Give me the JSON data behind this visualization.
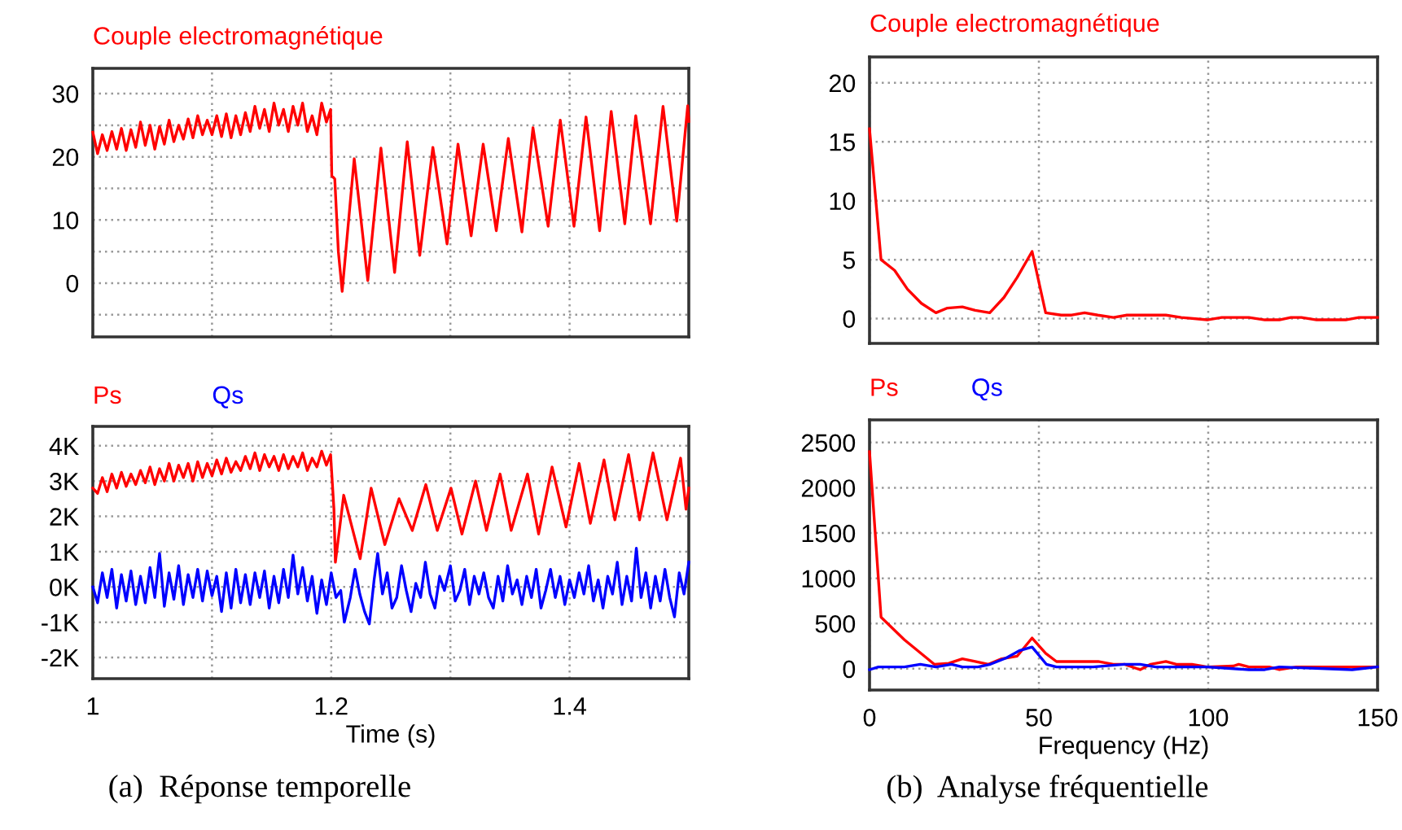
{
  "chart_data": [
    {
      "type": "line",
      "tick_labels": "y",
      "grid": true,
      "line_style": "solid",
      "marker": "none",
      "xlim": [
        1,
        1.5
      ],
      "xticks": [
        {
          "value": 1,
          "label": null
        },
        {
          "value": 1.1,
          "label": null
        },
        {
          "value": 1.2,
          "label": null
        },
        {
          "value": 1.3,
          "label": null
        },
        {
          "value": 1.4,
          "label": null
        }
      ],
      "ylim": [
        -8.5,
        34
      ],
      "yticks": [
        {
          "value": -5,
          "label": null
        },
        0,
        {
          "value": 5,
          "label": null
        },
        10,
        {
          "value": 15,
          "label": null
        },
        20,
        {
          "value": 25,
          "label": null
        },
        30
      ],
      "series": [
        {
          "name": "Couple electromagnétique",
          "color": "#ff0000",
          "x": [
            1.0,
            1.004,
            1.008,
            1.012,
            1.016,
            1.02,
            1.024,
            1.028,
            1.032,
            1.036,
            1.04,
            1.044,
            1.048,
            1.052,
            1.056,
            1.06,
            1.064,
            1.068,
            1.072,
            1.076,
            1.08,
            1.084,
            1.088,
            1.092,
            1.096,
            1.1,
            1.104,
            1.108,
            1.112,
            1.116,
            1.12,
            1.124,
            1.128,
            1.132,
            1.136,
            1.14,
            1.144,
            1.148,
            1.152,
            1.156,
            1.16,
            1.164,
            1.168,
            1.172,
            1.176,
            1.18,
            1.184,
            1.188,
            1.192,
            1.196,
            1.1995,
            1.2005,
            1.203,
            1.206,
            1.2092,
            1.2193,
            1.2307,
            1.2417,
            1.2532,
            1.2638,
            1.2743,
            1.2853,
            1.2972,
            1.3064,
            1.3174,
            1.3275,
            1.3385,
            1.3486,
            1.36,
            1.3693,
            1.382,
            1.3922,
            1.4037,
            1.4138,
            1.4252,
            1.4349,
            1.4463,
            1.4555,
            1.4679,
            1.4784,
            1.4899,
            1.4991,
            1.5
          ],
          "values": [
            23.9,
            20.5,
            23.5,
            21.0,
            24.0,
            21.2,
            24.5,
            21.0,
            24.3,
            21.5,
            25.5,
            21.8,
            25.0,
            21.2,
            24.8,
            22.0,
            25.8,
            22.4,
            25.0,
            22.8,
            26.0,
            23.0,
            26.5,
            23.5,
            25.8,
            23.5,
            26.5,
            23.2,
            26.8,
            23.0,
            26.5,
            23.5,
            27.0,
            24.0,
            28.0,
            24.5,
            27.5,
            24.0,
            28.5,
            25.0,
            27.5,
            24.0,
            28.0,
            25.0,
            28.5,
            24.0,
            26.5,
            23.5,
            28.5,
            25.5,
            27.5,
            17.0,
            16.5,
            5.0,
            -1.3,
            19.7,
            0.4,
            21.4,
            1.7,
            22.4,
            4.4,
            21.5,
            6.2,
            22.0,
            7.5,
            22.0,
            8.3,
            22.9,
            8.1,
            24.6,
            9.0,
            25.8,
            9.0,
            26.3,
            8.3,
            27.2,
            9.4,
            26.5,
            9.4,
            28.0,
            9.8,
            28.1,
            25.6
          ]
        }
      ]
    },
    {
      "type": "line",
      "grid": true,
      "line_style": "solid",
      "marker": "none",
      "xlabel": "Time (s)",
      "annotations": [
        "(a)  Réponse temporelle"
      ],
      "xlim": [
        1,
        1.5
      ],
      "xticks": [
        1,
        {
          "value": 1.1,
          "label": null
        },
        1.2,
        {
          "value": 1.3,
          "label": null
        },
        1.4
      ],
      "ylim": [
        -2600,
        4550
      ],
      "yticks": [
        {
          "value": -2000,
          "label": "-2K"
        },
        {
          "value": -1000,
          "label": "-1K"
        },
        {
          "value": 0,
          "label": "0K"
        },
        {
          "value": 1000,
          "label": "1K"
        },
        {
          "value": 2000,
          "label": "2K"
        },
        {
          "value": 3000,
          "label": "3K"
        },
        {
          "value": 4000,
          "label": "4K"
        }
      ],
      "series": [
        {
          "name": "Ps",
          "color": "#ff0000",
          "x": [
            1.0,
            1.004,
            1.008,
            1.012,
            1.016,
            1.02,
            1.024,
            1.028,
            1.032,
            1.036,
            1.04,
            1.044,
            1.048,
            1.052,
            1.056,
            1.06,
            1.064,
            1.068,
            1.072,
            1.076,
            1.08,
            1.084,
            1.088,
            1.092,
            1.096,
            1.1,
            1.104,
            1.108,
            1.112,
            1.116,
            1.12,
            1.124,
            1.128,
            1.132,
            1.136,
            1.14,
            1.144,
            1.148,
            1.152,
            1.156,
            1.16,
            1.164,
            1.168,
            1.172,
            1.176,
            1.18,
            1.184,
            1.188,
            1.192,
            1.196,
            1.1995,
            1.2023,
            1.2035,
            1.2105,
            1.2243,
            1.2335,
            1.245,
            1.2569,
            1.268,
            1.2794,
            1.289,
            1.3005,
            1.3097,
            1.3211,
            1.3303,
            1.3417,
            1.351,
            1.3647,
            1.374,
            1.3853,
            1.397,
            1.408,
            1.4174,
            1.4289,
            1.438,
            1.4495,
            1.4587,
            1.47,
            1.4817,
            1.4931,
            1.4977,
            1.5
          ],
          "values": [
            2800,
            2650,
            3100,
            2700,
            3200,
            2800,
            3250,
            2850,
            3200,
            2900,
            3300,
            2950,
            3400,
            2900,
            3350,
            3000,
            3500,
            3000,
            3450,
            3100,
            3500,
            3000,
            3550,
            3100,
            3500,
            3150,
            3600,
            3200,
            3650,
            3250,
            3550,
            3300,
            3700,
            3350,
            3800,
            3300,
            3750,
            3400,
            3700,
            3300,
            3750,
            3350,
            3700,
            3400,
            3800,
            3300,
            3650,
            3400,
            3850,
            3450,
            3750,
            2200,
            700,
            2600,
            800,
            2800,
            1200,
            2500,
            1600,
            2900,
            1600,
            2800,
            1500,
            3000,
            1600,
            3200,
            1600,
            3200,
            1500,
            3400,
            1700,
            3500,
            1800,
            3600,
            1900,
            3750,
            1900,
            3800,
            1900,
            3650,
            2200,
            2800
          ]
        },
        {
          "name": "Qs",
          "color": "#0000ff",
          "x": [
            1.0,
            1.004,
            1.008,
            1.012,
            1.016,
            1.02,
            1.024,
            1.028,
            1.032,
            1.036,
            1.04,
            1.044,
            1.048,
            1.052,
            1.056,
            1.06,
            1.064,
            1.068,
            1.072,
            1.076,
            1.08,
            1.084,
            1.088,
            1.092,
            1.096,
            1.1,
            1.104,
            1.108,
            1.112,
            1.116,
            1.12,
            1.124,
            1.128,
            1.132,
            1.136,
            1.14,
            1.144,
            1.148,
            1.152,
            1.156,
            1.16,
            1.164,
            1.168,
            1.172,
            1.176,
            1.18,
            1.184,
            1.188,
            1.192,
            1.196,
            1.2,
            1.204,
            1.208,
            1.211,
            1.216,
            1.22,
            1.224,
            1.228,
            1.232,
            1.236,
            1.239,
            1.243,
            1.247,
            1.251,
            1.255,
            1.259,
            1.263,
            1.267,
            1.271,
            1.275,
            1.279,
            1.283,
            1.287,
            1.291,
            1.295,
            1.3,
            1.304,
            1.308,
            1.312,
            1.316,
            1.32,
            1.324,
            1.328,
            1.332,
            1.336,
            1.34,
            1.344,
            1.348,
            1.352,
            1.356,
            1.36,
            1.364,
            1.368,
            1.372,
            1.376,
            1.38,
            1.384,
            1.388,
            1.392,
            1.396,
            1.4,
            1.404,
            1.408,
            1.412,
            1.416,
            1.42,
            1.424,
            1.428,
            1.432,
            1.436,
            1.44,
            1.444,
            1.448,
            1.452,
            1.456,
            1.46,
            1.464,
            1.468,
            1.472,
            1.476,
            1.48,
            1.484,
            1.488,
            1.492,
            1.496,
            1.5
          ],
          "values": [
            0,
            -450,
            400,
            -300,
            500,
            -600,
            350,
            -400,
            450,
            -500,
            300,
            -450,
            550,
            -300,
            950,
            -550,
            400,
            -350,
            600,
            -500,
            350,
            -300,
            500,
            -400,
            450,
            -250,
            300,
            -700,
            400,
            -600,
            500,
            -450,
            350,
            -500,
            400,
            -300,
            450,
            -600,
            300,
            -450,
            500,
            -300,
            900,
            -200,
            550,
            -400,
            300,
            -750,
            200,
            -500,
            400,
            -300,
            -100,
            -1000,
            -300,
            500,
            -200,
            -700,
            -1050,
            200,
            950,
            -200,
            400,
            -600,
            -300,
            600,
            -100,
            -700,
            100,
            -300,
            700,
            -200,
            -600,
            300,
            -100,
            600,
            -400,
            -100,
            500,
            -500,
            300,
            -200,
            400,
            -300,
            -600,
            300,
            -400,
            600,
            -200,
            200,
            -500,
            300,
            -300,
            500,
            -600,
            -100,
            500,
            -300,
            300,
            -500,
            200,
            -300,
            400,
            -200,
            600,
            -400,
            200,
            -600,
            300,
            -200,
            700,
            -500,
            300,
            -400,
            1100,
            -300,
            400,
            -600,
            300,
            -400,
            500,
            -300,
            -850,
            400,
            -200,
            700
          ]
        }
      ]
    },
    {
      "type": "line",
      "tick_labels": "y",
      "grid": true,
      "line_style": "solid",
      "marker": "none",
      "xlim": [
        0,
        150
      ],
      "xticks": [
        {
          "value": 0,
          "label": null
        },
        {
          "value": 50,
          "label": null
        },
        {
          "value": 100,
          "label": null
        },
        {
          "value": 150,
          "label": null
        }
      ],
      "ylim": [
        -2.1,
        22.2
      ],
      "yticks": [
        0,
        5,
        10,
        15,
        20
      ],
      "series": [
        {
          "name": "Couple electromagnétique",
          "color": "#ff0000",
          "x": [
            0,
            3.4,
            7.4,
            11.2,
            15.3,
            19.6,
            23,
            27.4,
            31.2,
            35.5,
            39.7,
            43.6,
            48,
            52,
            56.6,
            59.7,
            63.5,
            67.4,
            72,
            76,
            87.5,
            92,
            99.7,
            104,
            112,
            116.7,
            121,
            124.4,
            127.5,
            132,
            140.6,
            144.5,
            150
          ],
          "values": [
            16.1,
            5.0,
            4.1,
            2.5,
            1.3,
            0.5,
            0.9,
            1.0,
            0.7,
            0.5,
            1.8,
            3.5,
            5.7,
            0.5,
            0.3,
            0.3,
            0.5,
            0.3,
            0.1,
            0.3,
            0.3,
            0.1,
            -0.1,
            0.1,
            0.1,
            -0.1,
            -0.1,
            0.1,
            0.1,
            -0.1,
            -0.1,
            0.1,
            0.1
          ]
        }
      ]
    },
    {
      "type": "line",
      "grid": true,
      "line_style": "solid",
      "marker": "none",
      "xlabel": "Frequency (Hz)",
      "annotations": [
        "(b)  Analyse fréquentielle"
      ],
      "xlim": [
        0,
        150
      ],
      "xticks": [
        0,
        50,
        100,
        150
      ],
      "ylim": [
        -235,
        2750
      ],
      "yticks": [
        0,
        500,
        1000,
        1500,
        2000,
        2500
      ],
      "series": [
        {
          "name": "Ps",
          "color": "#ff0000",
          "x": [
            0,
            3.4,
            10.3,
            19.1,
            23.4,
            27.4,
            31.2,
            35.1,
            39,
            43.6,
            48,
            52,
            55.2,
            62.9,
            67.5,
            72,
            75.3,
            79.9,
            83,
            87.5,
            90.6,
            95.2,
            99.7,
            107.4,
            109,
            112,
            118,
            121,
            126,
            136.8,
            150
          ],
          "values": [
            2400,
            570,
            320,
            50,
            60,
            110,
            80,
            50,
            110,
            140,
            340,
            170,
            80,
            80,
            80,
            50,
            50,
            -10,
            50,
            80,
            50,
            50,
            20,
            30,
            50,
            20,
            20,
            -10,
            20,
            20,
            20
          ]
        },
        {
          "name": "Qs",
          "color": "#0000ff",
          "x": [
            0,
            2.6,
            10.3,
            15,
            19.6,
            24.2,
            27.4,
            32,
            35.7,
            40.4,
            44.2,
            48,
            52.2,
            55.2,
            66,
            75.3,
            79.9,
            84.5,
            99.7,
            112,
            116.7,
            121,
            142.5,
            150
          ],
          "values": [
            -10,
            20,
            20,
            50,
            20,
            50,
            20,
            20,
            50,
            120,
            200,
            240,
            50,
            20,
            20,
            50,
            50,
            20,
            20,
            -10,
            -10,
            20,
            -10,
            20
          ]
        }
      ]
    }
  ]
}
